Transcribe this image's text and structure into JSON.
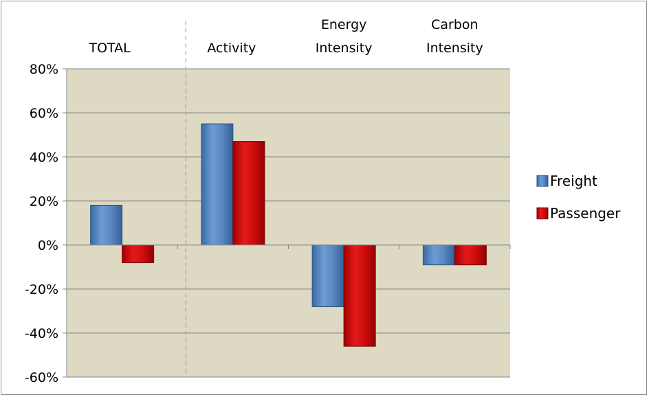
{
  "chart_data": {
    "type": "bar",
    "title": "",
    "xlabel": "",
    "ylabel": "",
    "categories": [
      "TOTAL",
      "Activity",
      "Energy\nIntensity",
      "Carbon\nIntensity"
    ],
    "series": [
      {
        "name": "Freight",
        "values": [
          18,
          55,
          -28,
          -9
        ],
        "color": "#4f81bd"
      },
      {
        "name": "Passenger",
        "values": [
          -8,
          47,
          -46,
          -9
        ],
        "color": "#c00000"
      }
    ],
    "ylim": [
      -60,
      80
    ],
    "yticks": [
      80,
      60,
      40,
      20,
      0,
      -20,
      -40,
      -60
    ],
    "ytick_labels": [
      "80%",
      "60%",
      "40%",
      "20%",
      "0%",
      "-20%",
      "-40%",
      "-60%"
    ],
    "grid": true,
    "legend": "right",
    "category_labels_position": "top",
    "divider_after_category": "TOTAL",
    "plot_background": "#ddd9c3"
  }
}
